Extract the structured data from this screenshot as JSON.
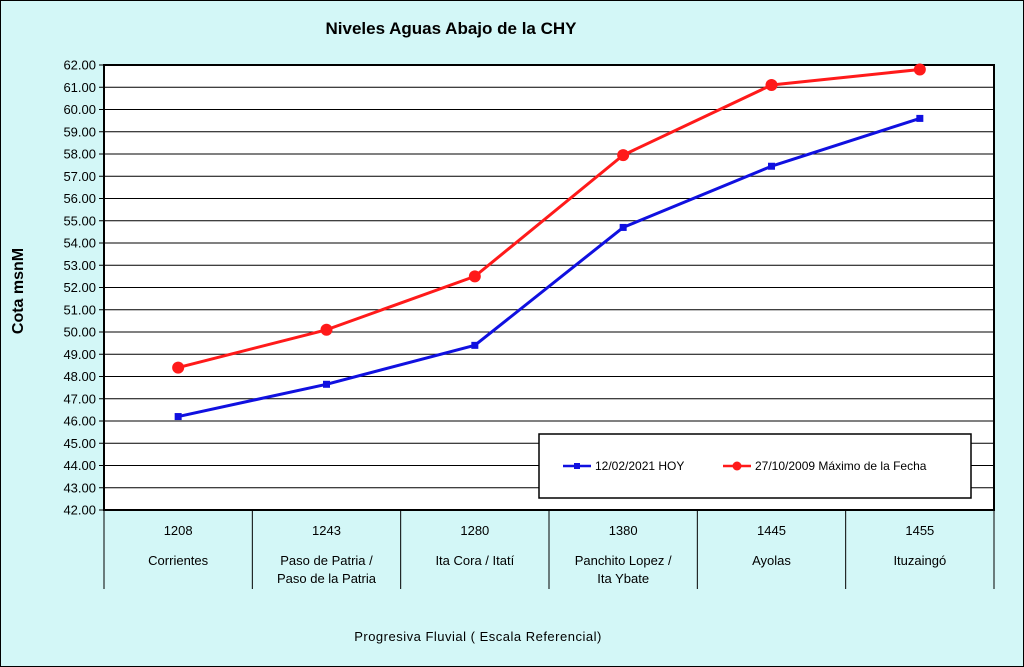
{
  "chart_data": {
    "type": "line",
    "title": "Niveles Aguas Abajo de la CHY",
    "ylabel": "Cota msnM",
    "xlabel": "Progresiva Fluvial ( Escala Referencial)",
    "ylim": [
      42,
      62
    ],
    "ystep": 1,
    "y_tick_labels": [
      "42.00",
      "43.00",
      "44.00",
      "45.00",
      "46.00",
      "47.00",
      "48.00",
      "49.00",
      "50.00",
      "51.00",
      "52.00",
      "53.00",
      "54.00",
      "55.00",
      "56.00",
      "57.00",
      "58.00",
      "59.00",
      "60.00",
      "61.00",
      "62.00"
    ],
    "grid": true,
    "legend_position": "bottom-right",
    "categories": [
      {
        "km": "1208",
        "lines": [
          "Corrientes"
        ]
      },
      {
        "km": "1243",
        "lines": [
          "Paso de Patria /",
          "Paso de la Patria"
        ]
      },
      {
        "km": "1280",
        "lines": [
          "Ita Cora / Itatí"
        ]
      },
      {
        "km": "1380",
        "lines": [
          "Panchito Lopez /",
          "Ita Ybate"
        ]
      },
      {
        "km": "1445",
        "lines": [
          "Ayolas"
        ]
      },
      {
        "km": "1455",
        "lines": [
          "Ituzaingó"
        ]
      }
    ],
    "series": [
      {
        "name": "12/02/2021 HOY",
        "color": "#1010e0",
        "marker": "square",
        "values": [
          46.2,
          47.65,
          49.4,
          54.7,
          57.45,
          59.6
        ]
      },
      {
        "name": "27/10/2009 Máximo de la Fecha",
        "color": "#ff1a1a",
        "marker": "circle",
        "values": [
          48.4,
          50.1,
          52.5,
          57.95,
          61.1,
          61.8
        ]
      }
    ]
  }
}
